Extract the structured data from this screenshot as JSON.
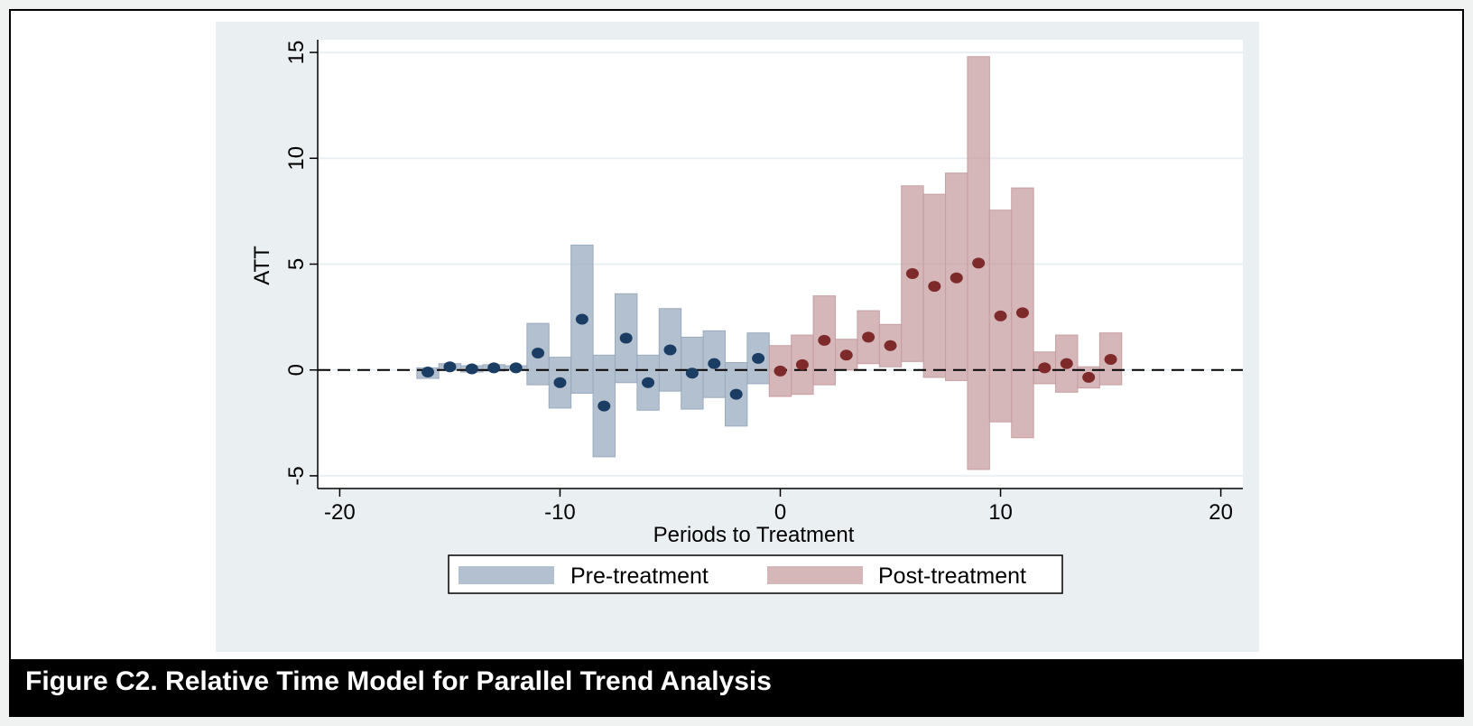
{
  "caption": "Figure C2. Relative Time Model for Parallel Trend Analysis",
  "chart_data": {
    "type": "scatter",
    "title": "",
    "xlabel": "Periods to Treatment",
    "ylabel": "ATT",
    "xlim": [
      -21,
      21
    ],
    "ylim": [
      -5.6,
      15.6
    ],
    "xticks": [
      -20,
      -10,
      0,
      10,
      20
    ],
    "yticks": [
      -5,
      0,
      5,
      10,
      15
    ],
    "xtick_labels": [
      "-20",
      "-10",
      "0",
      "10",
      "20"
    ],
    "ytick_labels": [
      "-5",
      "0",
      "5",
      "10",
      "15"
    ],
    "grid": true,
    "reference_line": {
      "y": 0,
      "style": "dashed"
    },
    "legend": {
      "placement": "bottom"
    },
    "colors": {
      "pre_fill": "#9aabbf",
      "pre_point": "#1b3d63",
      "post_fill": "#c79ea2",
      "post_point": "#7e2a2a",
      "plot_background": "#eaeff2"
    },
    "series": [
      {
        "name": "Pre-treatment",
        "points": [
          {
            "x": -16,
            "y": -0.1,
            "lo": -0.4,
            "hi": 0.1
          },
          {
            "x": -15,
            "y": 0.15,
            "lo": 0.0,
            "hi": 0.3
          },
          {
            "x": -14,
            "y": 0.05,
            "lo": -0.1,
            "hi": 0.2
          },
          {
            "x": -13,
            "y": 0.1,
            "lo": -0.05,
            "hi": 0.25
          },
          {
            "x": -12,
            "y": 0.1,
            "lo": 0.0,
            "hi": 0.2
          },
          {
            "x": -11,
            "y": 0.8,
            "lo": -0.7,
            "hi": 2.2
          },
          {
            "x": -10,
            "y": -0.6,
            "lo": -1.8,
            "hi": 0.6
          },
          {
            "x": -9,
            "y": 2.4,
            "lo": -1.1,
            "hi": 5.9
          },
          {
            "x": -8,
            "y": -1.7,
            "lo": -4.1,
            "hi": 0.7
          },
          {
            "x": -7,
            "y": 1.5,
            "lo": -0.6,
            "hi": 3.6
          },
          {
            "x": -6,
            "y": -0.6,
            "lo": -1.9,
            "hi": 0.7
          },
          {
            "x": -5,
            "y": 0.95,
            "lo": -1.0,
            "hi": 2.9
          },
          {
            "x": -4,
            "y": -0.15,
            "lo": -1.85,
            "hi": 1.55
          },
          {
            "x": -3,
            "y": 0.3,
            "lo": -1.3,
            "hi": 1.85
          },
          {
            "x": -2,
            "y": -1.15,
            "lo": -2.65,
            "hi": 0.35
          },
          {
            "x": -1,
            "y": 0.55,
            "lo": -0.65,
            "hi": 1.75
          }
        ]
      },
      {
        "name": "Post-treatment",
        "points": [
          {
            "x": 0,
            "y": -0.05,
            "lo": -1.25,
            "hi": 1.15
          },
          {
            "x": 1,
            "y": 0.25,
            "lo": -1.15,
            "hi": 1.65
          },
          {
            "x": 2,
            "y": 1.4,
            "lo": -0.7,
            "hi": 3.5
          },
          {
            "x": 3,
            "y": 0.7,
            "lo": 0.0,
            "hi": 1.45
          },
          {
            "x": 4,
            "y": 1.55,
            "lo": 0.3,
            "hi": 2.8
          },
          {
            "x": 5,
            "y": 1.15,
            "lo": 0.15,
            "hi": 2.15
          },
          {
            "x": 6,
            "y": 4.55,
            "lo": 0.4,
            "hi": 8.7
          },
          {
            "x": 7,
            "y": 3.95,
            "lo": -0.35,
            "hi": 8.3
          },
          {
            "x": 8,
            "y": 4.35,
            "lo": -0.5,
            "hi": 9.3
          },
          {
            "x": 9,
            "y": 5.05,
            "lo": -4.7,
            "hi": 14.8
          },
          {
            "x": 10,
            "y": 2.55,
            "lo": -2.45,
            "hi": 7.55
          },
          {
            "x": 11,
            "y": 2.7,
            "lo": -3.2,
            "hi": 8.6
          },
          {
            "x": 12,
            "y": 0.1,
            "lo": -0.65,
            "hi": 0.85
          },
          {
            "x": 13,
            "y": 0.3,
            "lo": -1.05,
            "hi": 1.65
          },
          {
            "x": 14,
            "y": -0.35,
            "lo": -0.85,
            "hi": 0.15
          },
          {
            "x": 15,
            "y": 0.5,
            "lo": -0.7,
            "hi": 1.75
          }
        ]
      }
    ]
  }
}
